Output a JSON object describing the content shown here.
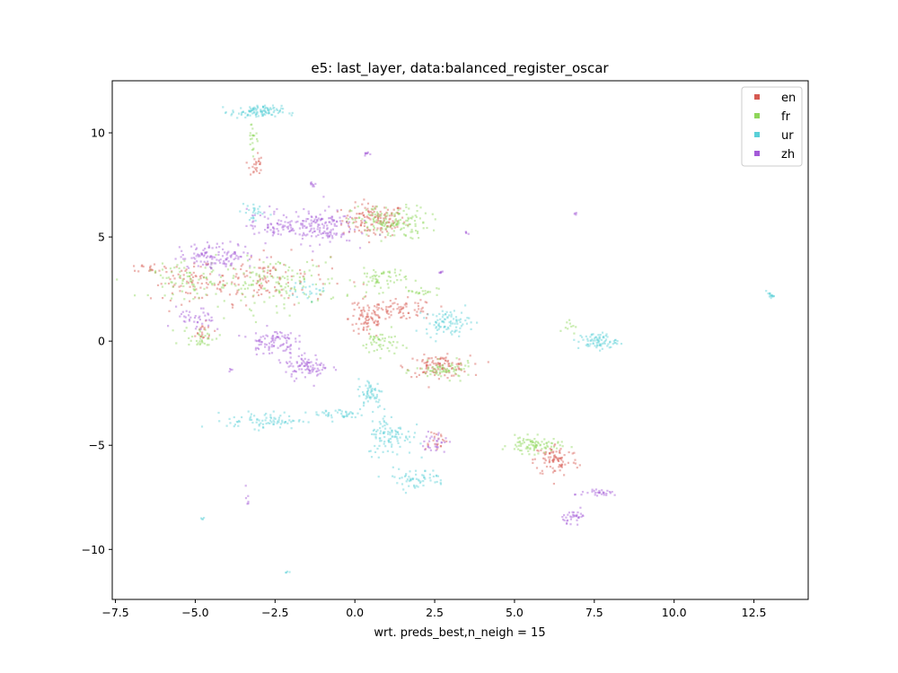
{
  "chart_data": {
    "type": "scatter",
    "title": "e5: last_layer, data:balanced_register_oscar",
    "xlabel": "wrt. preds_best,n_neigh = 15",
    "ylabel": "",
    "xlim": [
      -7.6,
      14.2
    ],
    "ylim": [
      -12.4,
      12.5
    ],
    "xticks": [
      -7.5,
      -5.0,
      -2.5,
      0.0,
      2.5,
      5.0,
      7.5,
      10.0,
      12.5
    ],
    "xtick_labels": [
      "−7.5",
      "−5.0",
      "−2.5",
      "0.0",
      "2.5",
      "5.0",
      "7.5",
      "10.0",
      "12.5"
    ],
    "yticks": [
      -10,
      -5,
      0,
      5,
      10
    ],
    "ytick_labels": [
      "−10",
      "−5",
      "0",
      "5",
      "10"
    ],
    "grid": false,
    "legend_position": "top-right",
    "series": [
      {
        "name": "en",
        "color": "#d65a52",
        "clusters": [
          {
            "cx": 0.6,
            "cy": 5.8,
            "sx": 0.5,
            "sy": 0.4,
            "n": 140
          },
          {
            "cx": -2.8,
            "cy": 3.0,
            "sx": 1.0,
            "sy": 0.6,
            "n": 120
          },
          {
            "cx": -5.2,
            "cy": 2.8,
            "sx": 0.6,
            "sy": 0.4,
            "n": 70
          },
          {
            "cx": 0.4,
            "cy": 1.1,
            "sx": 0.3,
            "sy": 0.5,
            "n": 80
          },
          {
            "cx": 1.5,
            "cy": 1.5,
            "sx": 0.5,
            "sy": 0.25,
            "n": 70
          },
          {
            "cx": 2.6,
            "cy": -1.2,
            "sx": 0.5,
            "sy": 0.25,
            "n": 110
          },
          {
            "cx": 6.3,
            "cy": -5.7,
            "sx": 0.35,
            "sy": 0.4,
            "n": 90
          },
          {
            "cx": -3.1,
            "cy": 8.5,
            "sx": 0.1,
            "sy": 0.3,
            "n": 25
          },
          {
            "cx": -6.4,
            "cy": 3.5,
            "sx": 0.2,
            "sy": 0.1,
            "n": 15
          },
          {
            "cx": 2.5,
            "cy": -4.7,
            "sx": 0.2,
            "sy": 0.25,
            "n": 20
          },
          {
            "cx": -4.8,
            "cy": 0.4,
            "sx": 0.2,
            "sy": 0.25,
            "n": 20
          }
        ]
      },
      {
        "name": "fr",
        "color": "#8fd65a",
        "clusters": [
          {
            "cx": 1.1,
            "cy": 5.7,
            "sx": 0.6,
            "sy": 0.4,
            "n": 150
          },
          {
            "cx": -2.6,
            "cy": 2.8,
            "sx": 1.1,
            "sy": 0.6,
            "n": 150
          },
          {
            "cx": -5.2,
            "cy": 2.9,
            "sx": 0.6,
            "sy": 0.4,
            "n": 70
          },
          {
            "cx": 0.8,
            "cy": 3.0,
            "sx": 0.4,
            "sy": 0.3,
            "n": 60
          },
          {
            "cx": 0.8,
            "cy": -0.1,
            "sx": 0.3,
            "sy": 0.3,
            "n": 50
          },
          {
            "cx": 2.8,
            "cy": -1.4,
            "sx": 0.45,
            "sy": 0.2,
            "n": 70
          },
          {
            "cx": 5.6,
            "cy": -5.0,
            "sx": 0.4,
            "sy": 0.2,
            "n": 90
          },
          {
            "cx": -4.8,
            "cy": 0.2,
            "sx": 0.3,
            "sy": 0.25,
            "n": 35
          },
          {
            "cx": 2.1,
            "cy": 2.4,
            "sx": 0.25,
            "sy": 0.1,
            "n": 20
          },
          {
            "cx": -3.2,
            "cy": 9.8,
            "sx": 0.1,
            "sy": 0.4,
            "n": 20
          },
          {
            "cx": 6.7,
            "cy": 0.8,
            "sx": 0.1,
            "sy": 0.2,
            "n": 10
          }
        ]
      },
      {
        "name": "ur",
        "color": "#5ad0d8",
        "clusters": [
          {
            "cx": -3.1,
            "cy": 11.0,
            "sx": 0.4,
            "sy": 0.15,
            "n": 110
          },
          {
            "cx": -2.8,
            "cy": -3.8,
            "sx": 0.6,
            "sy": 0.2,
            "n": 80
          },
          {
            "cx": -0.5,
            "cy": -3.5,
            "sx": 0.4,
            "sy": 0.15,
            "n": 40
          },
          {
            "cx": 0.5,
            "cy": -2.5,
            "sx": 0.2,
            "sy": 0.35,
            "n": 60
          },
          {
            "cx": 1.1,
            "cy": -4.5,
            "sx": 0.35,
            "sy": 0.5,
            "n": 100
          },
          {
            "cx": 1.9,
            "cy": -6.6,
            "sx": 0.5,
            "sy": 0.25,
            "n": 60
          },
          {
            "cx": 2.9,
            "cy": 0.9,
            "sx": 0.35,
            "sy": 0.3,
            "n": 90
          },
          {
            "cx": 7.6,
            "cy": 0.0,
            "sx": 0.3,
            "sy": 0.2,
            "n": 80
          },
          {
            "cx": 13.0,
            "cy": 2.2,
            "sx": 0.06,
            "sy": 0.06,
            "n": 15
          },
          {
            "cx": -1.4,
            "cy": 2.4,
            "sx": 0.3,
            "sy": 0.2,
            "n": 25
          },
          {
            "cx": -3.2,
            "cy": 6.2,
            "sx": 0.2,
            "sy": 0.3,
            "n": 25
          },
          {
            "cx": -4.8,
            "cy": -8.5,
            "sx": 0.04,
            "sy": 0.04,
            "n": 4
          },
          {
            "cx": -2.1,
            "cy": -11.1,
            "sx": 0.04,
            "sy": 0.04,
            "n": 4
          }
        ]
      },
      {
        "name": "zh",
        "color": "#a45ad8",
        "clusters": [
          {
            "cx": -1.2,
            "cy": 5.5,
            "sx": 0.6,
            "sy": 0.4,
            "n": 160
          },
          {
            "cx": -2.6,
            "cy": 5.6,
            "sx": 0.4,
            "sy": 0.4,
            "n": 60
          },
          {
            "cx": -4.3,
            "cy": 4.1,
            "sx": 0.6,
            "sy": 0.3,
            "n": 120
          },
          {
            "cx": -2.6,
            "cy": 0.0,
            "sx": 0.35,
            "sy": 0.3,
            "n": 90
          },
          {
            "cx": -1.5,
            "cy": -1.2,
            "sx": 0.35,
            "sy": 0.3,
            "n": 90
          },
          {
            "cx": -5.0,
            "cy": 1.0,
            "sx": 0.3,
            "sy": 0.3,
            "n": 40
          },
          {
            "cx": 2.5,
            "cy": -4.9,
            "sx": 0.2,
            "sy": 0.3,
            "n": 30
          },
          {
            "cx": 6.9,
            "cy": -8.4,
            "sx": 0.2,
            "sy": 0.15,
            "n": 35
          },
          {
            "cx": 7.7,
            "cy": -7.3,
            "sx": 0.4,
            "sy": 0.07,
            "n": 30
          },
          {
            "cx": 0.4,
            "cy": 9.0,
            "sx": 0.05,
            "sy": 0.05,
            "n": 8
          },
          {
            "cx": -1.3,
            "cy": 7.5,
            "sx": 0.05,
            "sy": 0.08,
            "n": 8
          },
          {
            "cx": 3.5,
            "cy": 5.2,
            "sx": 0.04,
            "sy": 0.04,
            "n": 4
          },
          {
            "cx": 6.9,
            "cy": 6.1,
            "sx": 0.04,
            "sy": 0.04,
            "n": 4
          },
          {
            "cx": 2.7,
            "cy": 3.3,
            "sx": 0.05,
            "sy": 0.05,
            "n": 6
          },
          {
            "cx": -3.4,
            "cy": -7.6,
            "sx": 0.05,
            "sy": 0.2,
            "n": 6
          },
          {
            "cx": -3.9,
            "cy": -1.4,
            "sx": 0.04,
            "sy": 0.04,
            "n": 4
          }
        ]
      }
    ]
  }
}
